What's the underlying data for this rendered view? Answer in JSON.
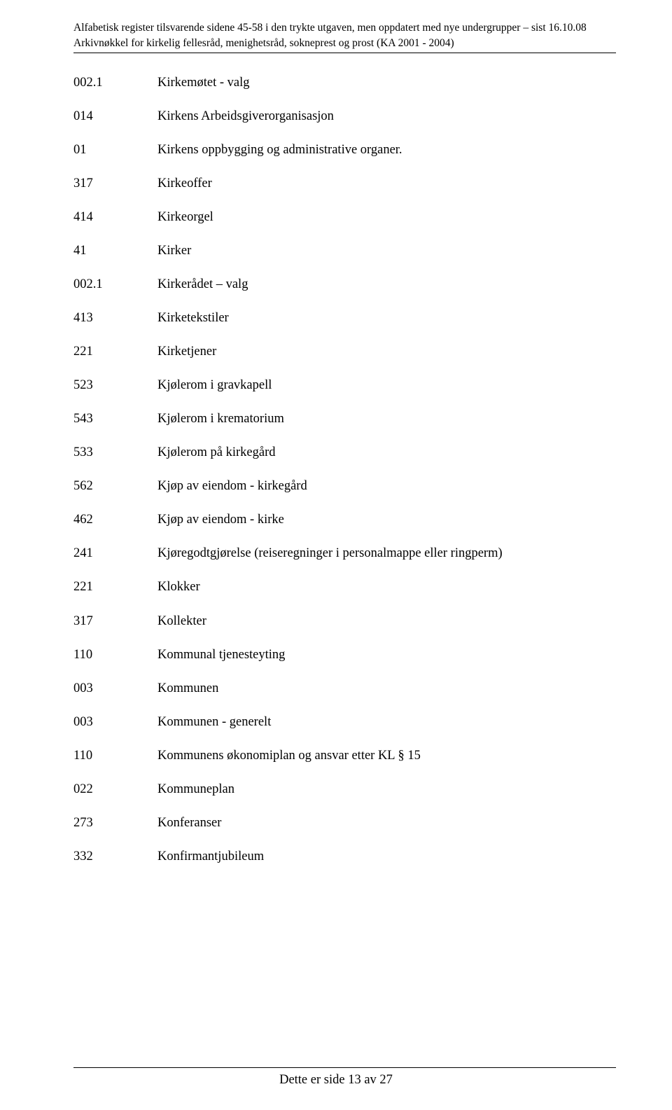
{
  "header": {
    "line1": "Alfabetisk register tilsvarende sidene 45-58 i den trykte utgaven, men oppdatert med nye undergrupper – sist 16.10.08",
    "line2": "Arkivnøkkel for kirkelig fellesråd, menighetsråd, sokneprest og prost (KA 2001 - 2004)"
  },
  "entries": [
    {
      "code": "002.1",
      "title": "Kirkemøtet - valg"
    },
    {
      "code": "014",
      "title": "Kirkens Arbeidsgiverorganisasjon"
    },
    {
      "code": "01",
      "title": "Kirkens oppbygging og administrative organer."
    },
    {
      "code": "317",
      "title": "Kirkeoffer"
    },
    {
      "code": "414",
      "title": "Kirkeorgel"
    },
    {
      "code": "41",
      "title": "Kirker"
    },
    {
      "code": "002.1",
      "title": "Kirkerådet – valg"
    },
    {
      "code": "413",
      "title": "Kirketekstiler"
    },
    {
      "code": "221",
      "title": "Kirketjener"
    },
    {
      "code": "523",
      "title": "Kjølerom i gravkapell"
    },
    {
      "code": "543",
      "title": "Kjølerom i krematorium"
    },
    {
      "code": "533",
      "title": "Kjølerom på kirkegård"
    },
    {
      "code": "562",
      "title": "Kjøp av eiendom - kirkegård"
    },
    {
      "code": "462",
      "title": "Kjøp av eiendom - kirke"
    },
    {
      "code": "241",
      "title": "Kjøregodtgjørelse (reiseregninger i personalmappe eller ringperm)"
    },
    {
      "code": "221",
      "title": "Klokker"
    },
    {
      "code": "317",
      "title": "Kollekter"
    },
    {
      "code": "110",
      "title": "Kommunal tjenesteyting"
    },
    {
      "code": "003",
      "title": "Kommunen"
    },
    {
      "code": "003",
      "title": "Kommunen - generelt"
    },
    {
      "code": "110",
      "title": "Kommunens økonomiplan og ansvar etter KL § 15"
    },
    {
      "code": "022",
      "title": "Kommuneplan"
    },
    {
      "code": "273",
      "title": "Konferanser"
    },
    {
      "code": "332",
      "title": "Konfirmantjubileum"
    }
  ],
  "footer": {
    "text": "Dette er side 13 av 27"
  }
}
